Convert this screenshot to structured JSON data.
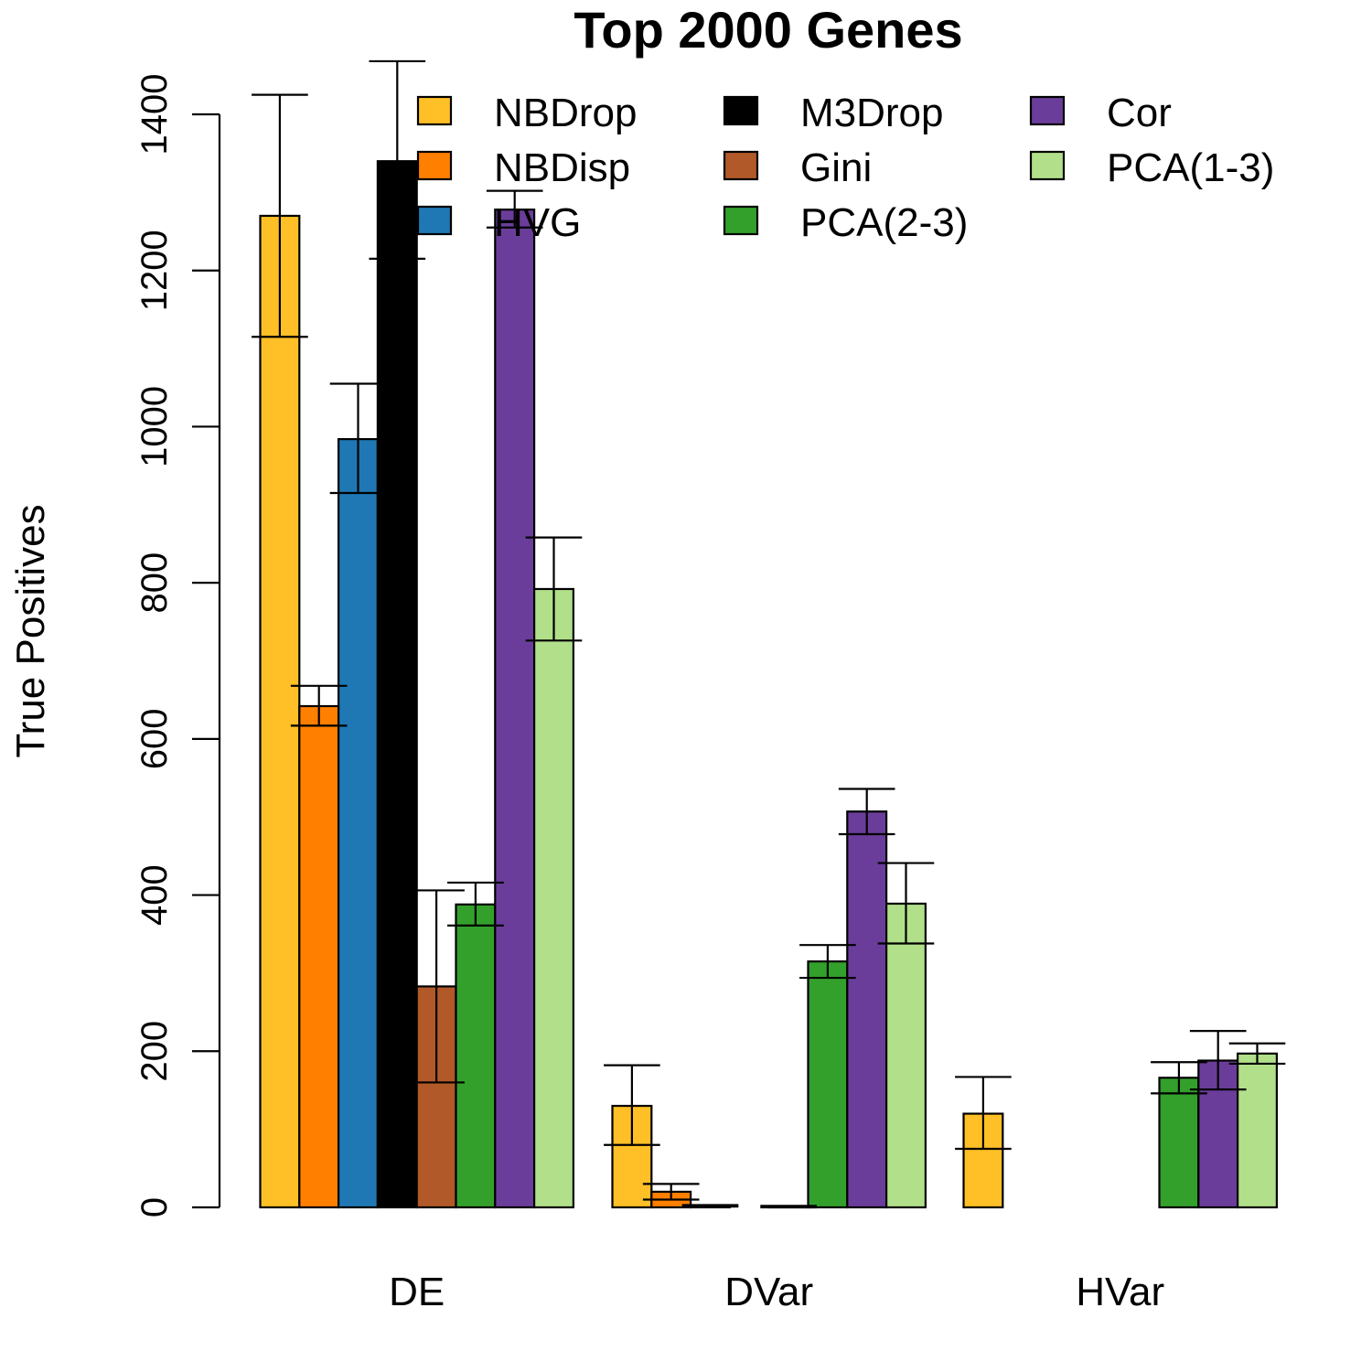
{
  "chart_data": {
    "type": "bar",
    "title": "Top 2000 Genes",
    "xlabel": "",
    "ylabel": "True Positives",
    "ylim": [
      0,
      1400
    ],
    "yticks": [
      0,
      200,
      400,
      600,
      800,
      1000,
      1200,
      1400
    ],
    "categories": [
      "DE",
      "DVar",
      "HVar"
    ],
    "legend_position": "top-right",
    "series": [
      {
        "name": "NBDrop",
        "color": "#FFBF26",
        "values": [
          1270,
          130,
          120
        ],
        "err_low": [
          1115,
          80,
          75
        ],
        "err_high": [
          1425,
          182,
          167
        ]
      },
      {
        "name": "NBDisp",
        "color": "#FF7F00",
        "values": [
          642,
          20,
          0
        ],
        "err_low": [
          617,
          10,
          0
        ],
        "err_high": [
          668,
          30,
          0
        ]
      },
      {
        "name": "HVG",
        "color": "#1F78B4",
        "values": [
          984,
          2,
          0
        ],
        "err_low": [
          915,
          1,
          0
        ],
        "err_high": [
          1055,
          3,
          0
        ]
      },
      {
        "name": "M3Drop",
        "color": "#000000",
        "values": [
          1340,
          0,
          0
        ],
        "err_low": [
          1215,
          0,
          0
        ],
        "err_high": [
          1468,
          0,
          0
        ]
      },
      {
        "name": "Gini",
        "color": "#B15928",
        "values": [
          283,
          1,
          0
        ],
        "err_low": [
          160,
          0,
          0
        ],
        "err_high": [
          406,
          2,
          0
        ]
      },
      {
        "name": "PCA(2-3)",
        "color": "#33A02C",
        "values": [
          388,
          315,
          166
        ],
        "err_low": [
          361,
          294,
          146
        ],
        "err_high": [
          416,
          336,
          186
        ]
      },
      {
        "name": "Cor",
        "color": "#6A3D9A",
        "values": [
          1278,
          507,
          188
        ],
        "err_low": [
          1255,
          478,
          151
        ],
        "err_high": [
          1302,
          536,
          226
        ]
      },
      {
        "name": "PCA(1-3)",
        "color": "#B2DF8A",
        "values": [
          792,
          389,
          197
        ],
        "err_low": [
          726,
          338,
          184
        ],
        "err_high": [
          858,
          441,
          210
        ]
      }
    ]
  }
}
